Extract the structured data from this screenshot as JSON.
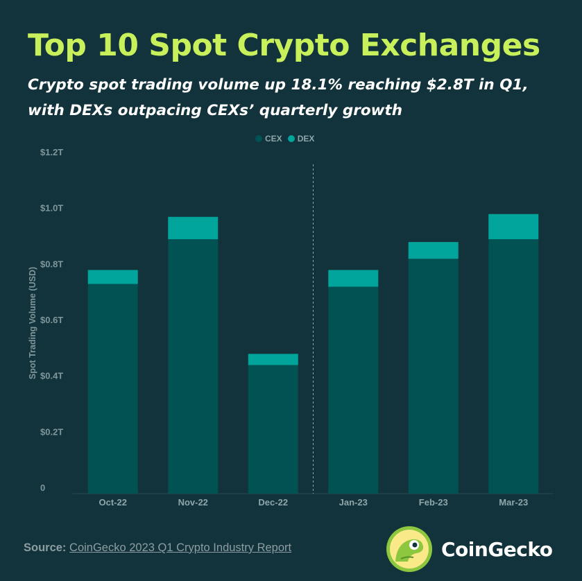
{
  "title": "Top 10 Spot Crypto Exchanges",
  "subtitle": "Crypto spot trading volume up 18.1% reaching $2.8T in Q1, with DEXs outpacing CEXs’ quarterly growth",
  "legend": {
    "cex_label": "CEX",
    "dex_label": "DEX"
  },
  "colors": {
    "background": "#12333b",
    "cex": "#005253",
    "dex": "#00a49a",
    "title": "#c8f05a"
  },
  "chart_data": {
    "type": "bar",
    "stacked": true,
    "categories": [
      "Oct-22",
      "Nov-22",
      "Dec-22",
      "Jan-23",
      "Feb-23",
      "Mar-23"
    ],
    "series": [
      {
        "name": "CEX",
        "values": [
          0.73,
          0.89,
          0.44,
          0.72,
          0.82,
          0.89
        ]
      },
      {
        "name": "DEX",
        "values": [
          0.05,
          0.08,
          0.04,
          0.06,
          0.06,
          0.09
        ]
      }
    ],
    "ylabel": "Spot Trading Volume (USD)",
    "ylim": [
      0,
      1.2
    ],
    "yticks": [
      0,
      0.2,
      0.4,
      0.6,
      0.8,
      1.0,
      1.2
    ],
    "ytick_labels": [
      "0",
      "$0.2T",
      "$0.4T",
      "$0.6T",
      "$0.8T",
      "$1.0T",
      "$1.2T"
    ],
    "divider_after_category": "Dec-22",
    "grid": false,
    "legend_position": "top-center"
  },
  "source": {
    "label": "Source:",
    "text": "CoinGecko 2023 Q1 Crypto Industry Report"
  },
  "brand": {
    "name": "CoinGecko"
  }
}
